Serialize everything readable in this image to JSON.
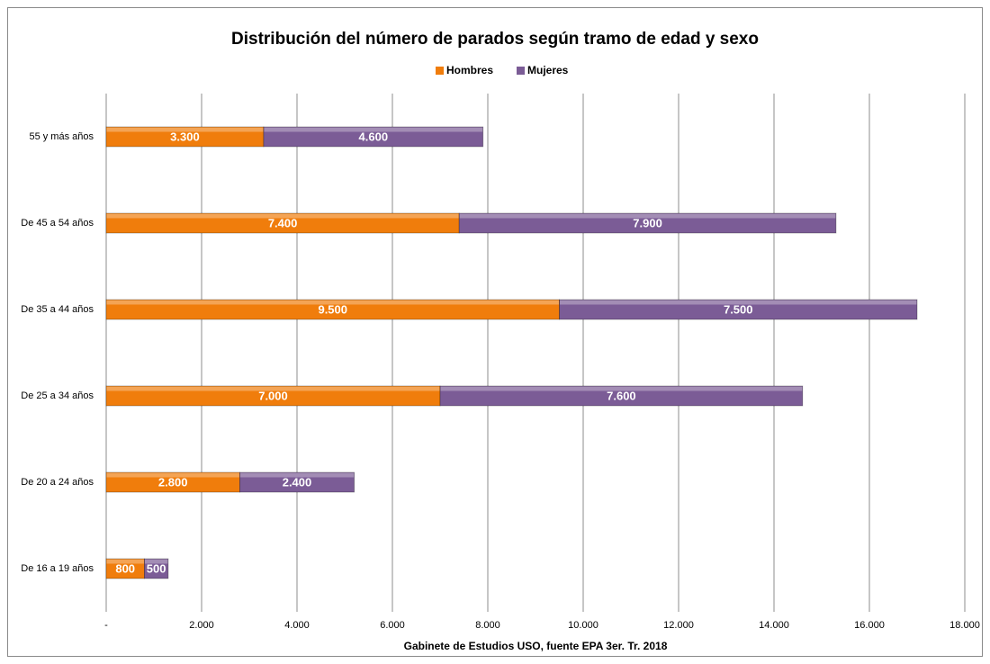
{
  "chart_data": {
    "type": "stacked-barh",
    "title": "Distribución del número de parados según tramo de edad y sexo",
    "xlabel": "Gabinete de Estudios USO, fuente EPA 3er. Tr. 2018",
    "categories": [
      "55 y más años",
      "De 45 a 54 años",
      "De 35 a 44 años",
      "De 25 a 34 años",
      "De 20 a 24 años",
      "De 16 a 19 años"
    ],
    "series": [
      {
        "name": "Hombres",
        "color": "#f07d0c",
        "values": [
          3300,
          7400,
          9500,
          7000,
          2800,
          800
        ],
        "value_labels": [
          "3.300",
          "7.400",
          "9.500",
          "7.000",
          "2.800",
          "800"
        ]
      },
      {
        "name": "Mujeres",
        "color": "#7b5c96",
        "values": [
          4600,
          7900,
          7500,
          7600,
          2400,
          500
        ],
        "value_labels": [
          "4.600",
          "7.900",
          "7.500",
          "7.600",
          "2.400",
          "500"
        ]
      }
    ],
    "xlim": [
      0,
      18000
    ],
    "xticks": [
      {
        "value": 0,
        "label": "-"
      },
      {
        "value": 2000,
        "label": "2.000"
      },
      {
        "value": 4000,
        "label": "4.000"
      },
      {
        "value": 6000,
        "label": "6.000"
      },
      {
        "value": 8000,
        "label": "8.000"
      },
      {
        "value": 10000,
        "label": "10.000"
      },
      {
        "value": 12000,
        "label": "12.000"
      },
      {
        "value": 14000,
        "label": "14.000"
      },
      {
        "value": 16000,
        "label": "16.000"
      },
      {
        "value": 18000,
        "label": "18.000"
      }
    ],
    "grid": true,
    "legend": "top"
  }
}
